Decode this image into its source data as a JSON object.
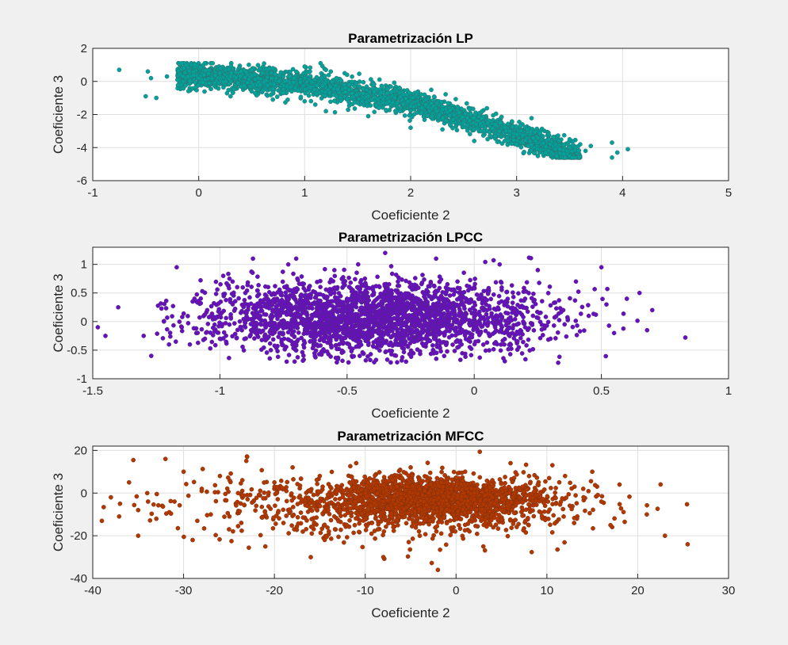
{
  "chart_data": [
    {
      "type": "scatter",
      "title": "Parametrización LP",
      "xlabel": "Coeficiente 2",
      "ylabel": "Coeficiente 3",
      "xlim": [
        -1,
        5
      ],
      "ylim": [
        -6,
        2
      ],
      "xticks": [
        "-1",
        "0",
        "1",
        "2",
        "3",
        "4",
        "5"
      ],
      "yticks": [
        "-6",
        "-4",
        "-2",
        "0",
        "2"
      ],
      "grid": true,
      "marker_color": "#00a39c",
      "edge_color": "#3a6b6a",
      "series": [
        {
          "points": [
            [
              -0.75,
              0.7
            ],
            [
              -0.5,
              -0.9
            ],
            [
              -0.48,
              0.6
            ],
            [
              -0.45,
              0.2
            ],
            [
              -0.4,
              -1.0
            ],
            [
              -0.3,
              0.3
            ],
            [
              -0.2,
              0.1
            ],
            [
              -0.1,
              0.3
            ],
            [
              0.0,
              0.2
            ],
            [
              0.05,
              0.4
            ],
            [
              0.1,
              -0.1
            ],
            [
              0.2,
              0.5
            ],
            [
              0.3,
              0.3
            ],
            [
              0.4,
              0.6
            ],
            [
              0.5,
              0.7
            ],
            [
              0.6,
              0.5
            ],
            [
              0.7,
              0.8
            ],
            [
              0.8,
              0.3
            ],
            [
              0.9,
              0.2
            ],
            [
              1.0,
              0.9
            ],
            [
              1.05,
              0.6
            ],
            [
              1.15,
              1.1
            ],
            [
              1.2,
              0.7
            ],
            [
              1.3,
              0.2
            ],
            [
              1.4,
              0.4
            ],
            [
              0.3,
              -0.9
            ],
            [
              0.5,
              -0.6
            ],
            [
              0.8,
              -0.7
            ],
            [
              1.0,
              -1.2
            ],
            [
              1.1,
              -1.4
            ],
            [
              1.3,
              -0.9
            ],
            [
              1.4,
              -1.1
            ],
            [
              1.5,
              -1.3
            ],
            [
              1.6,
              -0.9
            ],
            [
              1.7,
              -1.6
            ],
            [
              1.8,
              -1.2
            ],
            [
              1.9,
              -1.8
            ],
            [
              2.0,
              -1.5
            ],
            [
              2.1,
              -1.9
            ],
            [
              2.2,
              -2.1
            ],
            [
              2.3,
              -1.7
            ],
            [
              2.4,
              -2.3
            ],
            [
              2.5,
              -2.5
            ],
            [
              2.6,
              -2.2
            ],
            [
              2.7,
              -2.8
            ],
            [
              2.8,
              -2.6
            ],
            [
              2.9,
              -3.0
            ],
            [
              3.0,
              -3.2
            ],
            [
              3.1,
              -2.9
            ],
            [
              3.2,
              -3.4
            ],
            [
              3.3,
              -3.1
            ],
            [
              3.4,
              -3.6
            ],
            [
              3.5,
              -3.5
            ],
            [
              3.6,
              -3.8
            ],
            [
              3.65,
              -4.2
            ],
            [
              3.7,
              -3.9
            ],
            [
              3.9,
              -3.7
            ],
            [
              3.9,
              -4.6
            ],
            [
              3.95,
              -4.3
            ],
            [
              4.05,
              -4.1
            ],
            [
              2.6,
              -3.6
            ],
            [
              2.8,
              -3.3
            ],
            [
              3.0,
              -3.8
            ],
            [
              3.3,
              -3.2
            ],
            [
              3.5,
              -4.0
            ],
            [
              1.6,
              -2.1
            ],
            [
              1.2,
              -1.8
            ],
            [
              0.7,
              -1.1
            ],
            [
              2.0,
              -2.8
            ],
            [
              2.3,
              -2.9
            ]
          ]
        }
      ]
    },
    {
      "type": "scatter",
      "title": "Parametrización LPCC",
      "xlabel": "Coeficiente 2",
      "ylabel": "Coeficiente 3",
      "xlim": [
        -1.5,
        1
      ],
      "ylim": [
        -1,
        1.3
      ],
      "xticks": [
        "-1.5",
        "-1",
        "-0.5",
        "0",
        "0.5",
        "1"
      ],
      "yticks": [
        "-1",
        "-0.5",
        "0",
        "0.5",
        "1"
      ],
      "grid": true,
      "marker_color": "#6a0fbf",
      "edge_color": "#4a2a80",
      "series": [
        {
          "points": [
            [
              -1.48,
              -0.1
            ],
            [
              -1.45,
              -0.25
            ],
            [
              -1.4,
              0.25
            ],
            [
              -1.3,
              -0.25
            ],
            [
              -1.27,
              -0.6
            ],
            [
              -1.22,
              0.0
            ],
            [
              -1.2,
              -0.4
            ],
            [
              -1.17,
              0.95
            ],
            [
              -1.15,
              -0.1
            ],
            [
              -1.1,
              0.4
            ],
            [
              -1.05,
              0.2
            ],
            [
              -1.0,
              -0.3
            ],
            [
              -0.95,
              0.7
            ],
            [
              -0.9,
              0.5
            ],
            [
              -0.87,
              1.1
            ],
            [
              -0.85,
              0.1
            ],
            [
              -0.8,
              -0.5
            ],
            [
              -0.75,
              0.3
            ],
            [
              -0.7,
              1.1
            ],
            [
              -0.65,
              0.6
            ],
            [
              -0.6,
              -0.2
            ],
            [
              -0.55,
              0.9
            ],
            [
              -0.5,
              0.4
            ],
            [
              -0.45,
              -0.6
            ],
            [
              -0.4,
              0.2
            ],
            [
              -0.35,
              1.2
            ],
            [
              -0.3,
              0.7
            ],
            [
              -0.25,
              -0.3
            ],
            [
              -0.2,
              0.5
            ],
            [
              -0.15,
              1.1
            ],
            [
              -0.1,
              0.0
            ],
            [
              -0.05,
              -0.4
            ],
            [
              0.0,
              0.6
            ],
            [
              0.05,
              0.2
            ],
            [
              0.1,
              1.0
            ],
            [
              0.15,
              -0.2
            ],
            [
              0.2,
              0.4
            ],
            [
              0.25,
              0.9
            ],
            [
              0.3,
              -0.3
            ],
            [
              0.33,
              -0.72
            ],
            [
              0.35,
              0.2
            ],
            [
              0.4,
              0.7
            ],
            [
              0.45,
              0.1
            ],
            [
              0.5,
              0.95
            ],
            [
              0.52,
              0.3
            ],
            [
              0.55,
              -0.2
            ],
            [
              0.6,
              0.4
            ],
            [
              0.65,
              0.5
            ],
            [
              0.68,
              -0.15
            ],
            [
              0.7,
              0.2
            ],
            [
              0.83,
              -0.28
            ],
            [
              -0.9,
              -0.1
            ],
            [
              -0.7,
              -0.4
            ],
            [
              -0.5,
              0.0
            ],
            [
              -0.3,
              0.1
            ],
            [
              -0.1,
              0.3
            ],
            [
              0.1,
              0.1
            ],
            [
              -0.6,
              0.3
            ],
            [
              -0.8,
              -0.2
            ],
            [
              -0.2,
              -0.1
            ],
            [
              -1.0,
              0.1
            ],
            [
              -0.4,
              -0.2
            ],
            [
              0.0,
              0.0
            ],
            [
              0.2,
              -0.1
            ],
            [
              -0.55,
              0.5
            ],
            [
              -0.75,
              0.0
            ]
          ]
        }
      ]
    },
    {
      "type": "scatter",
      "title": "Parametrización MFCC",
      "xlabel": "Coeficiente 2",
      "ylabel": "Coeficiente 3",
      "xlim": [
        -40,
        30
      ],
      "ylim": [
        -40,
        22
      ],
      "xticks": [
        "-40",
        "-30",
        "-20",
        "-10",
        "0",
        "10",
        "20",
        "30"
      ],
      "yticks": [
        "-40",
        "-20",
        "0",
        "20"
      ],
      "grid": true,
      "marker_color": "#b33800",
      "edge_color": "#7a3010",
      "series": [
        {
          "points": [
            [
              -39,
              -13
            ],
            [
              -38,
              -2
            ],
            [
              -37,
              -5
            ],
            [
              -36,
              5
            ],
            [
              -35,
              -8
            ],
            [
              -35,
              -20
            ],
            [
              -34,
              0
            ],
            [
              -33,
              -12
            ],
            [
              -32,
              16
            ],
            [
              -31,
              -4
            ],
            [
              -30,
              10
            ],
            [
              -29,
              -22
            ],
            [
              -28,
              2
            ],
            [
              -27,
              -10
            ],
            [
              -26,
              8
            ],
            [
              -25,
              -17
            ],
            [
              -24,
              0
            ],
            [
              -23,
              17
            ],
            [
              -22,
              -6
            ],
            [
              -21,
              -25
            ],
            [
              -20,
              5
            ],
            [
              -19,
              -14
            ],
            [
              -18,
              12
            ],
            [
              -17,
              -3
            ],
            [
              -16,
              -30
            ],
            [
              -15,
              8
            ],
            [
              -14,
              -18
            ],
            [
              -13,
              3
            ],
            [
              -12,
              -6
            ],
            [
              -11,
              14
            ],
            [
              -10,
              -12
            ],
            [
              -9,
              2
            ],
            [
              -8,
              -30
            ],
            [
              -7,
              6
            ],
            [
              -6,
              -5
            ],
            [
              -5,
              12
            ],
            [
              -4,
              -20
            ],
            [
              -3,
              0
            ],
            [
              -2,
              -36
            ],
            [
              -1,
              5
            ],
            [
              0,
              -12
            ],
            [
              1,
              10
            ],
            [
              2,
              -3
            ],
            [
              3,
              -25
            ],
            [
              4,
              6
            ],
            [
              5,
              -8
            ],
            [
              6,
              14
            ],
            [
              7,
              -2
            ],
            [
              8,
              -15
            ],
            [
              9,
              4
            ],
            [
              10,
              22
            ],
            [
              11,
              -5
            ],
            [
              12,
              8
            ],
            [
              13,
              -14
            ],
            [
              14,
              2
            ],
            [
              15,
              10
            ],
            [
              16,
              -4
            ],
            [
              17,
              -15
            ],
            [
              18,
              4
            ],
            [
              21,
              -10
            ],
            [
              23,
              -20
            ],
            [
              25.5,
              -24
            ],
            [
              -5,
              -2
            ],
            [
              -2,
              0
            ],
            [
              0,
              2
            ],
            [
              -8,
              -4
            ],
            [
              -3,
              -8
            ],
            [
              2,
              0
            ],
            [
              -10,
              0
            ],
            [
              -6,
              4
            ],
            [
              -1,
              -5
            ],
            [
              4,
              -2
            ]
          ]
        }
      ]
    }
  ]
}
